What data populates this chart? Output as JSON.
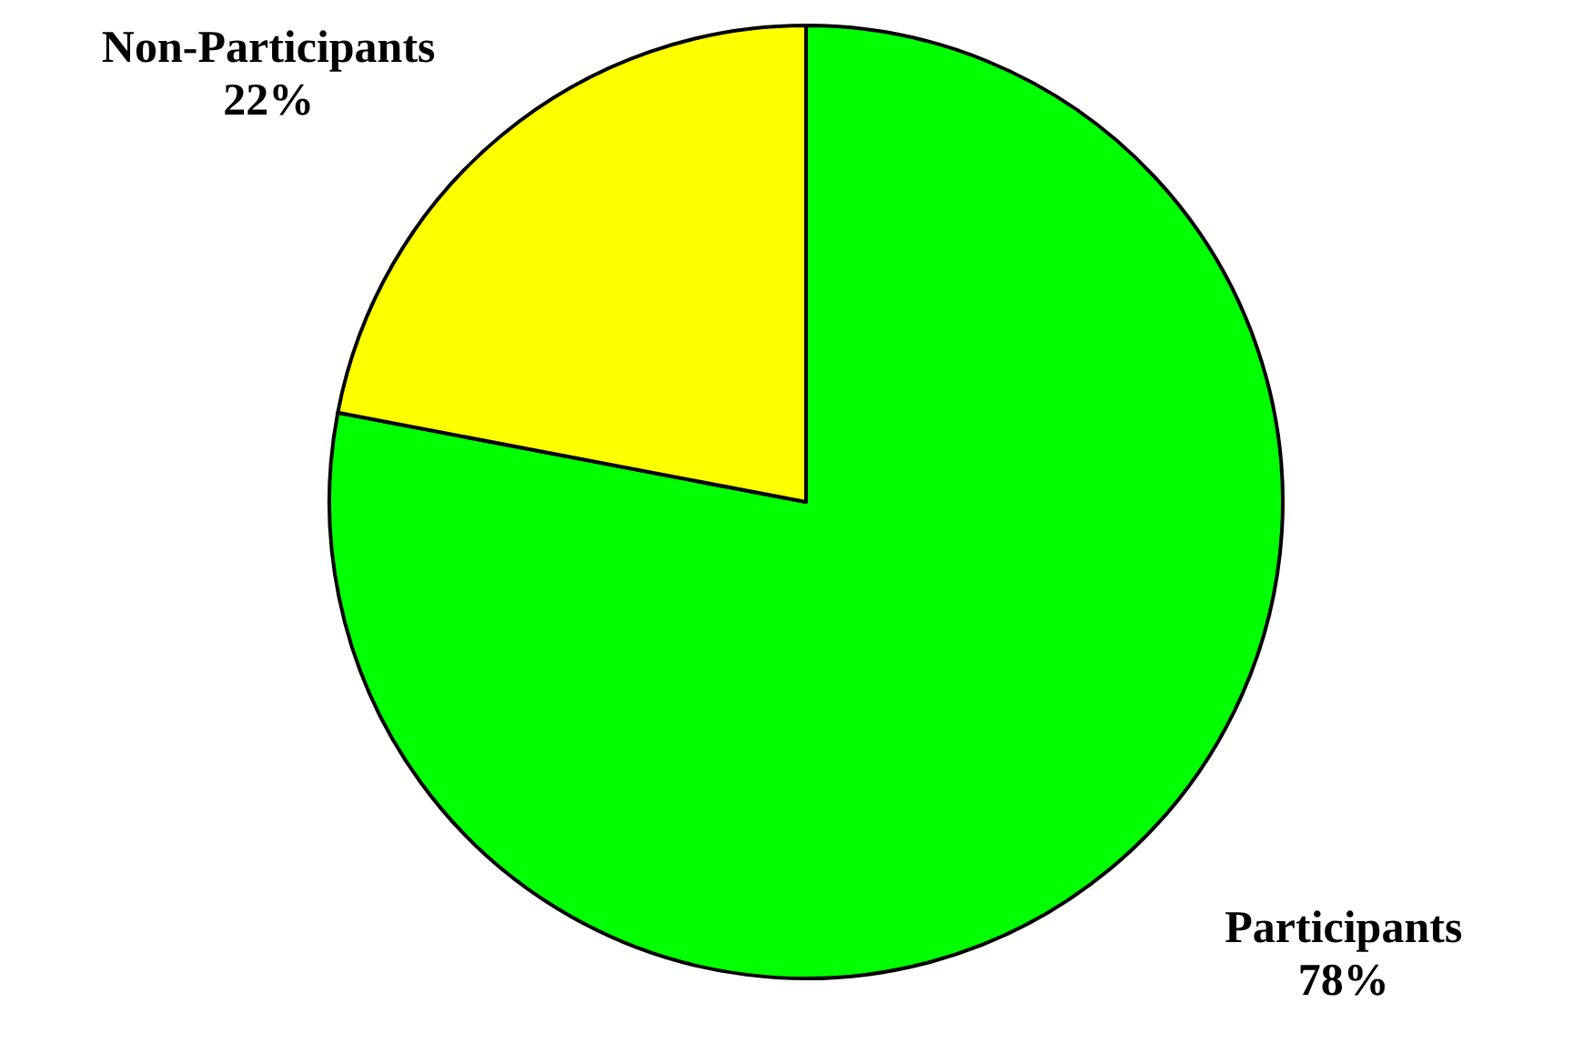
{
  "chart_data": {
    "type": "pie",
    "categories": [
      "Non-Participants",
      "Participants"
    ],
    "values": [
      22,
      78
    ],
    "colors": [
      "#ffff00",
      "#00ff00"
    ],
    "value_labels": [
      "22%",
      "78%"
    ]
  }
}
